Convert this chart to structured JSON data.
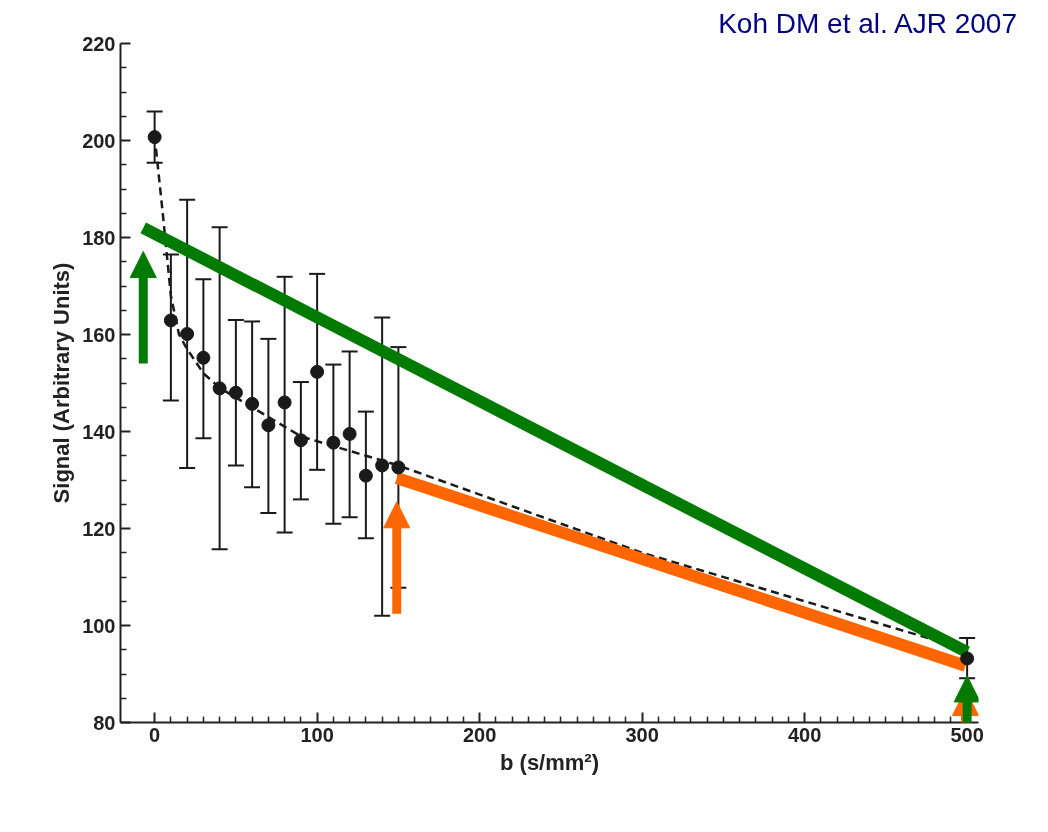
{
  "chart_data": {
    "type": "scatter",
    "xlabel": "b (s/mm²)",
    "ylabel": "Signal (Arbitrary Units)",
    "annotations": [
      "Koh DM et al. AJR 2007"
    ],
    "xlim": [
      -21,
      507
    ],
    "xticks": [
      0,
      100,
      200,
      300,
      400,
      500
    ],
    "ylim": [
      80,
      220
    ],
    "yticks": [
      80,
      100,
      120,
      140,
      160,
      180,
      200,
      220
    ],
    "series": [
      {
        "color": "#1a1a1a",
        "marker": "circle",
        "x": [
          0,
          10,
          20,
          30,
          40,
          50,
          60,
          70,
          80,
          90,
          100,
          110,
          120,
          130,
          140,
          150,
          500
        ],
        "values": [
          200.7,
          162.9,
          160.1,
          155.2,
          148.9,
          148.0,
          145.7,
          141.3,
          146.0,
          138.2,
          152.3,
          137.7,
          139.5,
          130.9,
          133.0,
          132.6,
          93.2
        ],
        "errors": [
          [
            195.4,
            206.0
          ],
          [
            146.4,
            176.5
          ],
          [
            132.5,
            187.8
          ],
          [
            138.6,
            171.4
          ],
          [
            115.7,
            182.1
          ],
          [
            133.0,
            163.0
          ],
          [
            128.5,
            162.7
          ],
          [
            123.2,
            159.1
          ],
          [
            119.2,
            171.9
          ],
          [
            126.0,
            150.2
          ],
          [
            132.1,
            172.5
          ],
          [
            121.0,
            153.8
          ],
          [
            122.3,
            156.5
          ],
          [
            118.0,
            144.1
          ],
          [
            102.0,
            163.5
          ],
          [
            107.8,
            157.4
          ],
          [
            89.1,
            97.4
          ]
        ]
      },
      {
        "type": "line",
        "color": "#1a1a1a",
        "line_style": "dashed",
        "x": [
          0,
          5,
          10,
          15,
          20,
          30,
          40,
          50,
          70,
          90,
          110,
          130,
          150,
          300,
          500
        ],
        "values": [
          201,
          185,
          168,
          160,
          157,
          152,
          149,
          147,
          143,
          139,
          137,
          135,
          133,
          115,
          95
        ]
      },
      {
        "type": "line",
        "color": "#007a00",
        "line_style": "solid",
        "x": [
          -7,
          500
        ],
        "values": [
          182,
          94.5
        ]
      },
      {
        "type": "line",
        "color": "#ff6600",
        "line_style": "solid",
        "x": [
          149,
          499
        ],
        "values": [
          130.4,
          91.7
        ]
      }
    ]
  }
}
